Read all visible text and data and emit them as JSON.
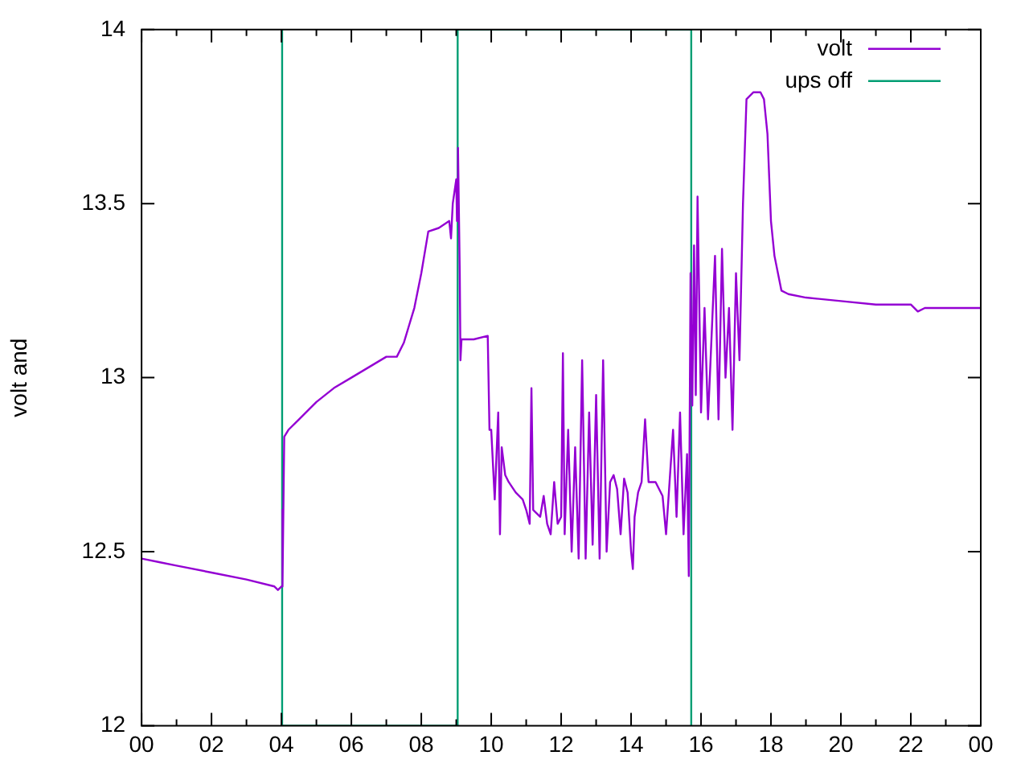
{
  "chart_data": {
    "type": "line",
    "ylabel": "volt and",
    "legend": "top right",
    "grid": false,
    "xlim": [
      0,
      24
    ],
    "xticks": [
      {
        "value": 0,
        "label": "00"
      },
      {
        "value": 1,
        "label": null
      },
      {
        "value": 2,
        "label": "02"
      },
      {
        "value": 3,
        "label": null
      },
      {
        "value": 4,
        "label": "04"
      },
      {
        "value": 5,
        "label": null
      },
      {
        "value": 6,
        "label": "06"
      },
      {
        "value": 7,
        "label": null
      },
      {
        "value": 8,
        "label": "08"
      },
      {
        "value": 9,
        "label": null
      },
      {
        "value": 10,
        "label": "10"
      },
      {
        "value": 11,
        "label": null
      },
      {
        "value": 12,
        "label": "12"
      },
      {
        "value": 13,
        "label": null
      },
      {
        "value": 14,
        "label": "14"
      },
      {
        "value": 15,
        "label": null
      },
      {
        "value": 16,
        "label": "16"
      },
      {
        "value": 17,
        "label": null
      },
      {
        "value": 18,
        "label": "18"
      },
      {
        "value": 19,
        "label": null
      },
      {
        "value": 20,
        "label": "20"
      },
      {
        "value": 21,
        "label": null
      },
      {
        "value": 22,
        "label": "22"
      },
      {
        "value": 23,
        "label": null
      },
      {
        "value": 24,
        "label": "00"
      }
    ],
    "ylim": [
      12,
      14
    ],
    "yticks": [
      12,
      12.5,
      13,
      13.5,
      14
    ],
    "series": [
      {
        "name": "volt",
        "color": "#9400d3",
        "x": [
          0,
          0.5,
          1,
          2,
          3,
          3.8,
          3.9,
          4.0,
          4.02,
          4.04,
          4.08,
          4.2,
          4.5,
          5,
          5.5,
          6,
          6.5,
          7,
          7.3,
          7.5,
          7.8,
          8.0,
          8.2,
          8.5,
          8.8,
          8.85,
          8.9,
          9.0,
          9.02,
          9.05,
          9.1,
          9.12,
          9.15,
          9.5,
          9.9,
          9.95,
          10.0,
          10.1,
          10.2,
          10.25,
          10.3,
          10.4,
          10.5,
          10.7,
          10.9,
          11.0,
          11.1,
          11.15,
          11.2,
          11.4,
          11.5,
          11.6,
          11.7,
          11.8,
          11.9,
          12.0,
          12.05,
          12.1,
          12.2,
          12.3,
          12.4,
          12.5,
          12.6,
          12.7,
          12.8,
          12.9,
          13.0,
          13.1,
          13.2,
          13.3,
          13.4,
          13.5,
          13.6,
          13.7,
          13.8,
          13.9,
          14.0,
          14.05,
          14.1,
          14.2,
          14.3,
          14.4,
          14.5,
          14.7,
          14.9,
          15.0,
          15.1,
          15.2,
          15.3,
          15.4,
          15.5,
          15.6,
          15.65,
          15.7,
          15.75,
          15.8,
          15.85,
          15.9,
          16.0,
          16.1,
          16.2,
          16.4,
          16.5,
          16.6,
          16.7,
          16.8,
          16.9,
          17.0,
          17.1,
          17.2,
          17.3,
          17.5,
          17.7,
          17.8,
          17.9,
          18.0,
          18.1,
          18.3,
          18.5,
          19,
          20,
          21,
          22,
          22.2,
          22.4,
          23,
          24
        ],
        "values": [
          12.48,
          12.47,
          12.46,
          12.44,
          12.42,
          12.4,
          12.39,
          12.4,
          12.62,
          12.4,
          12.83,
          12.85,
          12.88,
          12.93,
          12.97,
          13.0,
          13.03,
          13.06,
          13.06,
          13.1,
          13.2,
          13.3,
          13.42,
          13.43,
          13.45,
          13.4,
          13.5,
          13.57,
          13.45,
          13.66,
          13.3,
          13.05,
          13.11,
          13.11,
          13.12,
          12.85,
          12.85,
          12.65,
          12.9,
          12.55,
          12.8,
          12.72,
          12.7,
          12.67,
          12.65,
          12.62,
          12.58,
          12.97,
          12.62,
          12.6,
          12.66,
          12.58,
          12.55,
          12.7,
          12.58,
          12.6,
          13.07,
          12.55,
          12.85,
          12.5,
          12.8,
          12.48,
          13.05,
          12.48,
          12.9,
          12.52,
          12.95,
          12.48,
          13.05,
          12.5,
          12.7,
          12.72,
          12.68,
          12.55,
          12.71,
          12.67,
          12.5,
          12.45,
          12.6,
          12.67,
          12.7,
          12.88,
          12.7,
          12.7,
          12.66,
          12.55,
          12.7,
          12.85,
          12.6,
          12.9,
          12.55,
          12.78,
          12.43,
          13.3,
          12.92,
          13.38,
          12.95,
          13.52,
          12.9,
          13.2,
          12.88,
          13.35,
          12.88,
          13.37,
          13.0,
          13.2,
          12.85,
          13.3,
          13.05,
          13.5,
          13.8,
          13.82,
          13.82,
          13.8,
          13.7,
          13.45,
          13.35,
          13.25,
          13.24,
          13.23,
          13.22,
          13.21,
          13.21,
          13.19,
          13.2,
          13.2,
          13.2
        ]
      },
      {
        "name": "ups off",
        "color": "#009e73",
        "x": [
          4.02,
          4.02,
          9.04,
          9.04,
          15.72,
          15.72
        ],
        "values": [
          14,
          12,
          12,
          14,
          14,
          12
        ]
      }
    ]
  }
}
